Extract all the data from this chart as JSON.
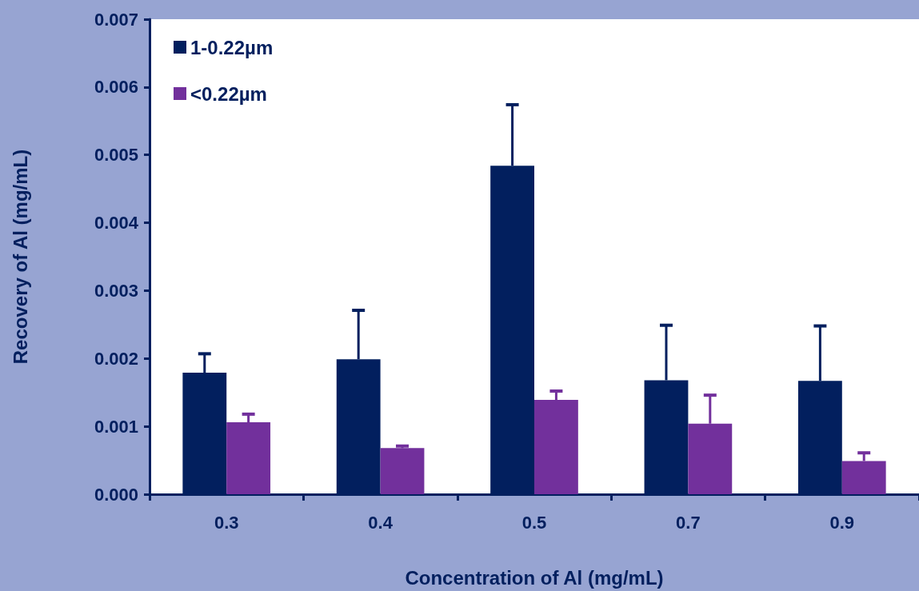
{
  "chart_data": {
    "type": "bar",
    "xlabel": "Concentration of Al (mg/mL)",
    "ylabel": "Recovery of Al (mg/mL)",
    "categories": [
      "0.3",
      "0.4",
      "0.5",
      "0.7",
      "0.9"
    ],
    "series": [
      {
        "name": "1-0.22µm",
        "color": "#021f5e",
        "values": [
          0.00179,
          0.00199,
          0.00484,
          0.00168,
          0.00167
        ],
        "errors": [
          [
            0.00179,
            0.00207
          ],
          [
            0.00199,
            0.00271
          ],
          [
            0.00484,
            0.00574
          ],
          [
            0.00168,
            0.00249
          ],
          [
            0.00167,
            0.00248
          ]
        ]
      },
      {
        "name": "<0.22µm",
        "color": "#72309c",
        "values": [
          0.00106,
          0.00068,
          0.00139,
          0.00104,
          0.00049
        ],
        "errors": [
          [
            0.00106,
            0.00118
          ],
          [
            0.00068,
            0.00071
          ],
          [
            0.00139,
            0.00152
          ],
          [
            0.00104,
            0.00146
          ],
          [
            0.00049,
            0.00061
          ]
        ]
      }
    ],
    "ylim": [
      0,
      0.007
    ],
    "yticks": [
      {
        "value": 0,
        "label": "0.000"
      },
      {
        "value": 0.001,
        "label": "0.001"
      },
      {
        "value": 0.002,
        "label": "0.002"
      },
      {
        "value": 0.003,
        "label": "0.003"
      },
      {
        "value": 0.004,
        "label": "0.004"
      },
      {
        "value": 0.005,
        "label": "0.005"
      },
      {
        "value": 0.006,
        "label": "0.006"
      },
      {
        "value": 0.007,
        "label": "0.007"
      }
    ],
    "grid": false,
    "legend": "top left"
  }
}
